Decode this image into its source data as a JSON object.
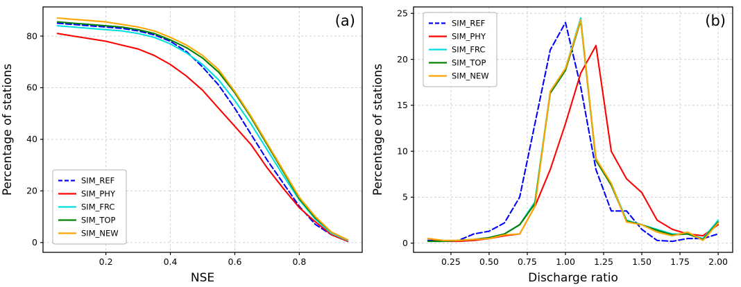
{
  "figure": {
    "background": "#ffffff",
    "panel_count": 2
  },
  "chart_data": [
    {
      "id": "a",
      "type": "line",
      "title": "",
      "panel_label": "(a)",
      "xlabel": "NSE",
      "ylabel": "Percentage of stations",
      "xlim": [
        0.005,
        0.995
      ],
      "ylim": [
        -3.8,
        91.3
      ],
      "xtick_values": [
        0.2,
        0.4,
        0.6,
        0.8
      ],
      "xtick_labels": [
        "0.2",
        "0.4",
        "0.6",
        "0.8"
      ],
      "ytick_values": [
        0,
        20,
        40,
        60,
        80
      ],
      "ytick_labels": [
        "0",
        "20",
        "40",
        "60",
        "80"
      ],
      "grid": true,
      "grid_color": "#cfcfcf",
      "legend": {
        "position": "lower-left"
      },
      "x": [
        0.05,
        0.1,
        0.15,
        0.2,
        0.25,
        0.3,
        0.35,
        0.4,
        0.45,
        0.5,
        0.55,
        0.6,
        0.65,
        0.7,
        0.75,
        0.8,
        0.85,
        0.9,
        0.95
      ],
      "series": [
        {
          "name": "SIM_REF",
          "color": "#0000ff",
          "dash": "8,4",
          "values": [
            85,
            84.5,
            84,
            83.5,
            83,
            82,
            80.5,
            78,
            74,
            68,
            61,
            52,
            42,
            32,
            23,
            14,
            7,
            3,
            0.5
          ]
        },
        {
          "name": "SIM_PHY",
          "color": "#ff0000",
          "dash": null,
          "values": [
            81,
            80,
            79,
            78,
            76.5,
            75,
            72.5,
            69,
            64.5,
            59,
            52,
            45,
            38,
            29,
            21,
            13.5,
            8,
            3,
            0.5
          ]
        },
        {
          "name": "SIM_FRC",
          "color": "#00dfdf",
          "dash": null,
          "values": [
            84,
            83.5,
            83,
            82.5,
            82,
            81,
            79.5,
            77,
            73.5,
            69,
            63,
            55,
            46,
            36,
            26,
            16.5,
            9,
            3.5,
            0.8
          ]
        },
        {
          "name": "SIM_TOP",
          "color": "#008000",
          "dash": null,
          "values": [
            85.5,
            85,
            84.5,
            84,
            83.5,
            82.5,
            81,
            78.5,
            75.5,
            71.5,
            66,
            58,
            48.5,
            38,
            27.5,
            17,
            9.5,
            4,
            1
          ]
        },
        {
          "name": "SIM_NEW",
          "color": "#ffa500",
          "dash": null,
          "values": [
            87,
            86.5,
            86,
            85.5,
            84.5,
            83.5,
            82,
            79.5,
            76.5,
            72.5,
            67,
            58.5,
            49,
            38.5,
            28,
            17.5,
            10,
            4,
            1
          ]
        }
      ]
    },
    {
      "id": "b",
      "type": "line",
      "title": "",
      "panel_label": "(b)",
      "xlabel": "Discharge ratio",
      "ylabel": "Percentage of stations",
      "xlim": [
        0.005,
        2.095
      ],
      "ylim": [
        -1.0,
        25.7
      ],
      "xtick_values": [
        0.25,
        0.5,
        0.75,
        1.0,
        1.25,
        1.5,
        1.75,
        2.0
      ],
      "xtick_labels": [
        "0.25",
        "0.50",
        "0.75",
        "1.00",
        "1.25",
        "1.50",
        "1.75",
        "2.00"
      ],
      "ytick_values": [
        0,
        5,
        10,
        15,
        20,
        25
      ],
      "ytick_labels": [
        "0",
        "5",
        "10",
        "15",
        "20",
        "25"
      ],
      "grid": true,
      "grid_color": "#cfcfcf",
      "legend": {
        "position": "upper-left"
      },
      "x": [
        0.1,
        0.2,
        0.3,
        0.4,
        0.5,
        0.6,
        0.7,
        0.8,
        0.9,
        1.0,
        1.1,
        1.2,
        1.3,
        1.4,
        1.5,
        1.6,
        1.7,
        1.8,
        1.9,
        2.0
      ],
      "series": [
        {
          "name": "SIM_REF",
          "color": "#0000ff",
          "dash": "8,4",
          "values": [
            0.3,
            0.2,
            0.3,
            1.0,
            1.3,
            2.2,
            5,
            13,
            21,
            24,
            17,
            8,
            3.5,
            3.5,
            1.5,
            0.3,
            0.2,
            0.5,
            0.5,
            1.0
          ]
        },
        {
          "name": "SIM_PHY",
          "color": "#ff0000",
          "dash": null,
          "values": [
            0.5,
            0.2,
            0.2,
            0.3,
            0.5,
            0.8,
            1.0,
            4,
            8,
            13,
            18.5,
            21.5,
            10,
            7,
            5.5,
            2.5,
            1.5,
            1.0,
            0.8,
            2.0
          ]
        },
        {
          "name": "SIM_FRC",
          "color": "#00dfdf",
          "dash": null,
          "values": [
            0.2,
            0.2,
            0.3,
            0.4,
            0.6,
            1.0,
            2.0,
            4.5,
            16.5,
            19,
            24.5,
            9,
            6.5,
            2.5,
            2.0,
            1.5,
            1.0,
            1.0,
            0.5,
            2.5
          ]
        },
        {
          "name": "SIM_TOP",
          "color": "#008000",
          "dash": null,
          "values": [
            0.2,
            0.2,
            0.3,
            0.4,
            0.6,
            1.0,
            2.0,
            4.3,
            16.3,
            18.8,
            24.2,
            9.0,
            6.3,
            2.4,
            2.0,
            1.4,
            0.9,
            1.0,
            0.4,
            2.3
          ]
        },
        {
          "name": "SIM_NEW",
          "color": "#ffa500",
          "dash": null,
          "values": [
            0.5,
            0.3,
            0.3,
            0.4,
            0.5,
            0.9,
            1.0,
            4.0,
            16.5,
            19,
            24.3,
            9.2,
            6.5,
            2.3,
            2.0,
            1.2,
            0.8,
            1.2,
            0.3,
            2.2
          ]
        }
      ]
    }
  ]
}
